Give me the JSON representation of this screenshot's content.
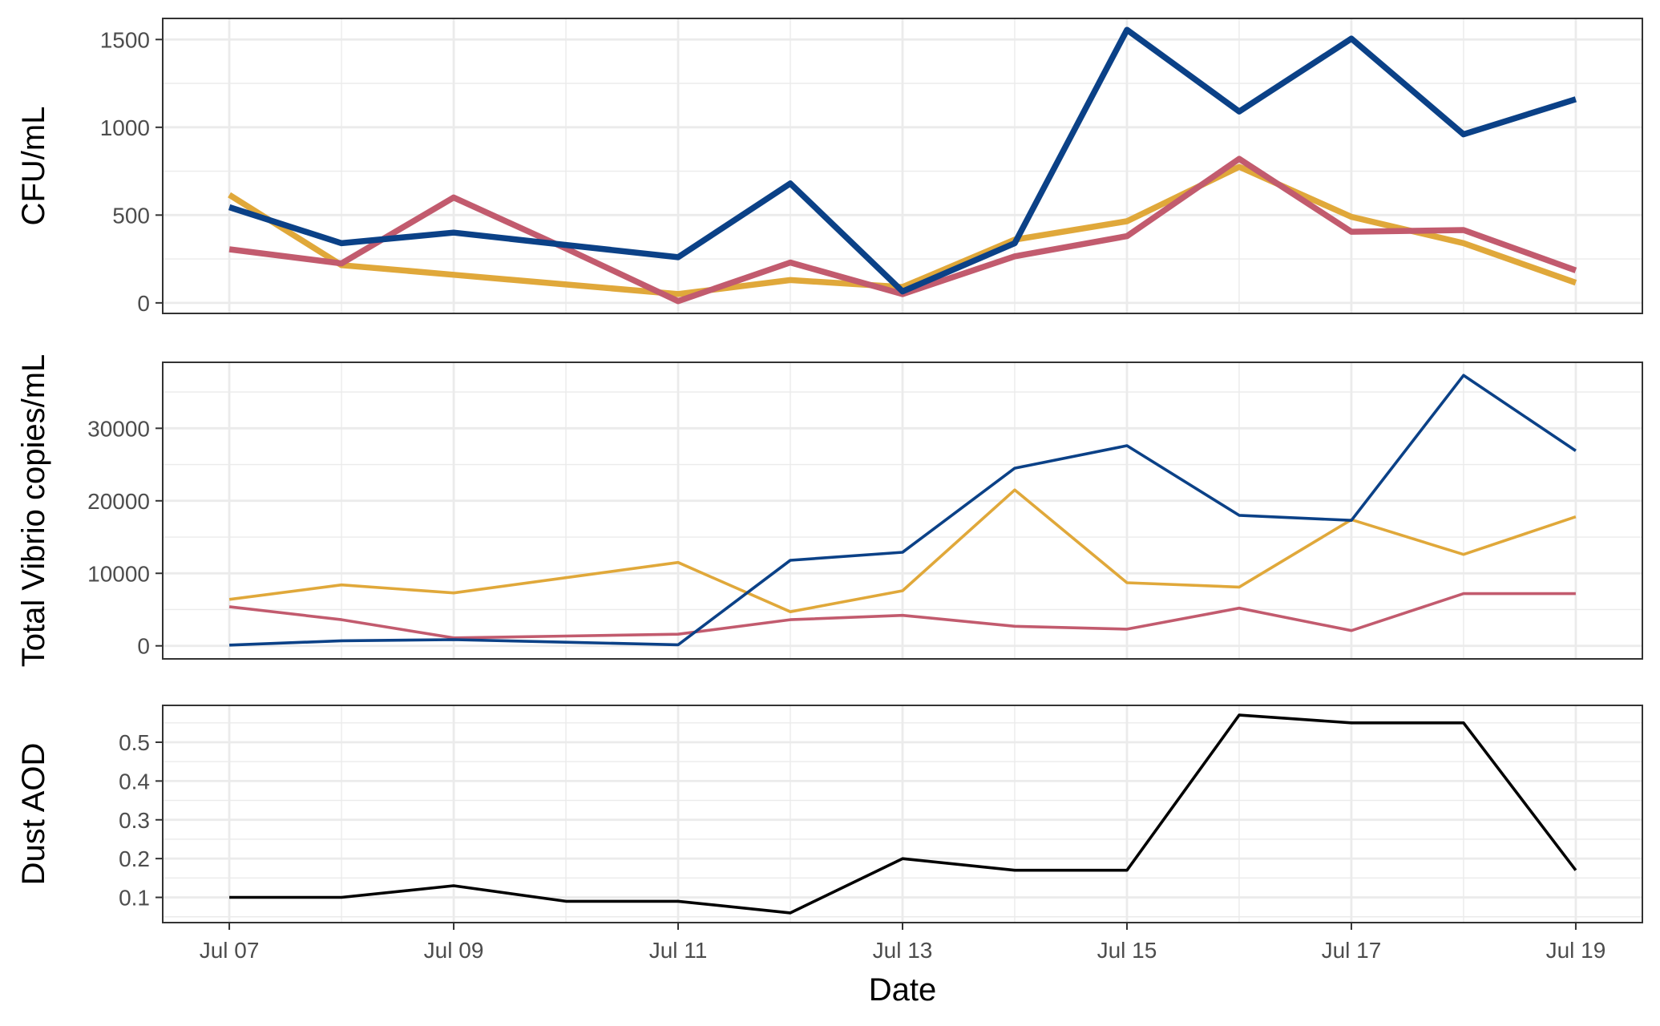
{
  "figure": {
    "xlabel": "Date",
    "x_ticks": [
      "Jul 07",
      "Jul 09",
      "Jul 11",
      "Jul 13",
      "Jul 15",
      "Jul 17",
      "Jul 19"
    ],
    "background": "#ffffff",
    "panel_border": "#333333",
    "grid_color": "#ebebeb"
  },
  "chart_data": [
    {
      "type": "line",
      "ylabel": "CFU/mL",
      "ylim": [
        -60,
        1620
      ],
      "y_ticks": [
        "0",
        "500",
        "1000",
        "1500"
      ],
      "x": [
        "Jul 07",
        "Jul 08",
        "Jul 09",
        "Jul 10",
        "Jul 11",
        "Jul 12",
        "Jul 13",
        "Jul 14",
        "Jul 15",
        "Jul 16",
        "Jul 17",
        "Jul 18",
        "Jul 19"
      ],
      "grid": true,
      "series": [
        {
          "color": "#e0a83a",
          "values": [
            615,
            215,
            160,
            105,
            50,
            130,
            90,
            360,
            465,
            775,
            490,
            340,
            115
          ]
        },
        {
          "color": "#c25b6e",
          "values": [
            305,
            225,
            600,
            310,
            10,
            230,
            50,
            265,
            380,
            820,
            405,
            415,
            185
          ]
        },
        {
          "color": "#0b4187",
          "values": [
            545,
            340,
            400,
            330,
            260,
            680,
            65,
            340,
            1555,
            1090,
            1505,
            960,
            1160
          ]
        }
      ]
    },
    {
      "type": "line",
      "ylabel": "Total Vibrio copies/mL",
      "ylim": [
        -1800,
        39100
      ],
      "y_ticks": [
        "0",
        "10000",
        "20000",
        "30000"
      ],
      "x": [
        "Jul 07",
        "Jul 08",
        "Jul 09",
        "Jul 10",
        "Jul 11",
        "Jul 12",
        "Jul 13",
        "Jul 14",
        "Jul 15",
        "Jul 16",
        "Jul 17",
        "Jul 18",
        "Jul 19"
      ],
      "grid": true,
      "series": [
        {
          "color": "#e0a83a",
          "values": [
            6400,
            8400,
            7300,
            9400,
            11500,
            4700,
            7600,
            21500,
            8700,
            8100,
            17400,
            12600,
            17800
          ]
        },
        {
          "color": "#c25b6e",
          "values": [
            5400,
            3600,
            1100,
            1350,
            1600,
            3600,
            4200,
            2700,
            2300,
            5200,
            2100,
            7200,
            7200
          ]
        },
        {
          "color": "#0b4187",
          "values": [
            100,
            700,
            850,
            500,
            150,
            11800,
            12900,
            24500,
            27600,
            18000,
            17300,
            37300,
            26900
          ]
        }
      ]
    },
    {
      "type": "line",
      "ylabel": "Dust AOD",
      "ylim": [
        0.035,
        0.595
      ],
      "y_ticks": [
        "0.1",
        "0.2",
        "0.3",
        "0.4",
        "0.5"
      ],
      "x": [
        "Jul 07",
        "Jul 08",
        "Jul 09",
        "Jul 10",
        "Jul 11",
        "Jul 12",
        "Jul 13",
        "Jul 14",
        "Jul 15",
        "Jul 16",
        "Jul 17",
        "Jul 18",
        "Jul 19"
      ],
      "grid": true,
      "series": [
        {
          "color": "#000000",
          "values": [
            0.1,
            0.1,
            0.13,
            0.09,
            0.09,
            0.06,
            0.2,
            0.17,
            0.17,
            0.57,
            0.55,
            0.55,
            0.17
          ]
        }
      ]
    }
  ]
}
